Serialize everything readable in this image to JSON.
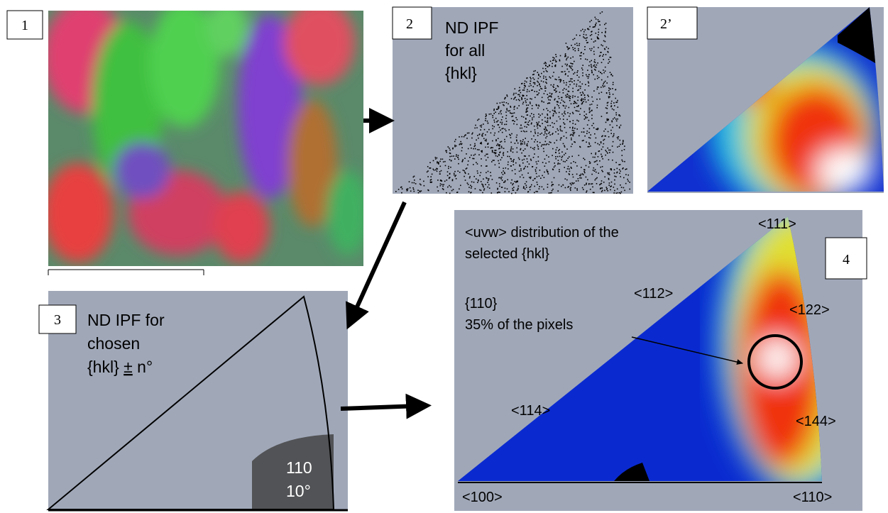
{
  "panels": [
    {
      "label": "1"
    },
    {
      "label": "2",
      "title_lines": [
        "ND IPF",
        "for all",
        "{hkl}"
      ]
    },
    {
      "label": "2’"
    },
    {
      "label": "3",
      "title_lines": [
        "ND IPF for",
        "chosen",
        "{hkl} ",
        "±",
        " n°"
      ],
      "annotation": [
        "110",
        "10°"
      ]
    },
    {
      "label": "4",
      "title_lines": [
        "<uvw> distribution of the",
        "selected {hkl}"
      ],
      "annotation": [
        "{110}",
        "35% of the pixels"
      ],
      "directions": [
        "<111>",
        "<112>",
        "<122>",
        "<114>",
        "<144>",
        "<100>",
        "<110>"
      ]
    }
  ]
}
